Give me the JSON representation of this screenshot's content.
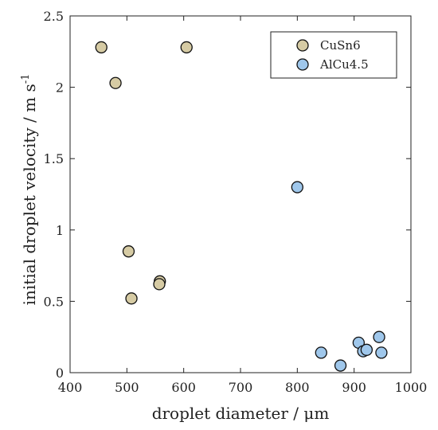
{
  "chart_data": {
    "type": "scatter",
    "xlabel": "droplet diameter / μm",
    "ylabel_main": "initial droplet velocity / m s",
    "ylabel_exp": "-1",
    "xlim": [
      400,
      1000
    ],
    "ylim": [
      0,
      2.5
    ],
    "xticks": [
      "400",
      "500",
      "600",
      "700",
      "800",
      "900",
      "1000"
    ],
    "yticks": [
      "0",
      "0.5",
      "1",
      "1.5",
      "2",
      "2.5"
    ],
    "grid": false,
    "legend_position": "top-right",
    "series": [
      {
        "name": "CuSn6",
        "color": "#d6cba4",
        "points": [
          {
            "x": 455,
            "y": 2.28
          },
          {
            "x": 480,
            "y": 2.03
          },
          {
            "x": 605,
            "y": 2.28
          },
          {
            "x": 503,
            "y": 0.85
          },
          {
            "x": 508,
            "y": 0.52
          },
          {
            "x": 558,
            "y": 0.64
          },
          {
            "x": 557,
            "y": 0.62
          }
        ]
      },
      {
        "name": "AlCu4.5",
        "color": "#9fc7eb",
        "points": [
          {
            "x": 800,
            "y": 1.3
          },
          {
            "x": 842,
            "y": 0.14
          },
          {
            "x": 876,
            "y": 0.05
          },
          {
            "x": 908,
            "y": 0.21
          },
          {
            "x": 916,
            "y": 0.15
          },
          {
            "x": 922,
            "y": 0.16
          },
          {
            "x": 944,
            "y": 0.25
          },
          {
            "x": 948,
            "y": 0.14
          }
        ]
      }
    ]
  }
}
